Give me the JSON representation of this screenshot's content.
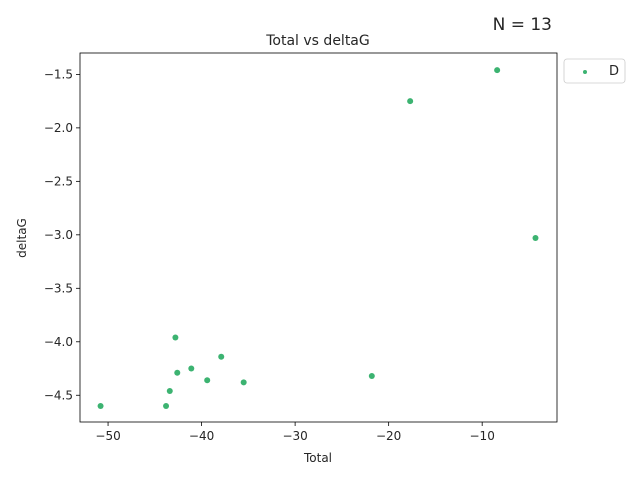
{
  "figure": {
    "annotation": "N = 13"
  },
  "chart_data": {
    "type": "scatter",
    "title": "Total vs deltaG",
    "xlabel": "Total",
    "ylabel": "deltaG",
    "xlim": [
      -53,
      -2
    ],
    "ylim": [
      -4.75,
      -1.3
    ],
    "xticks": [
      -50,
      -40,
      -30,
      -20,
      -10
    ],
    "xtick_labels": [
      "−50",
      "−40",
      "−30",
      "−20",
      "−10"
    ],
    "yticks": [
      -4.5,
      -4.0,
      -3.5,
      -3.0,
      -2.5,
      -2.0,
      -1.5
    ],
    "ytick_labels": [
      "−4.5",
      "−4.0",
      "−3.5",
      "−3.0",
      "−2.5",
      "−2.0",
      "−1.5"
    ],
    "grid": false,
    "legend_placement": "outside-top-right",
    "series": [
      {
        "name": "D",
        "color": "#3cb371",
        "points": [
          {
            "x": -8.4,
            "y": -1.46
          },
          {
            "x": -17.7,
            "y": -1.75
          },
          {
            "x": -4.3,
            "y": -3.03
          },
          {
            "x": -42.8,
            "y": -3.96
          },
          {
            "x": -37.9,
            "y": -4.14
          },
          {
            "x": -41.1,
            "y": -4.25
          },
          {
            "x": -42.6,
            "y": -4.29
          },
          {
            "x": -21.8,
            "y": -4.32
          },
          {
            "x": -39.4,
            "y": -4.36
          },
          {
            "x": -35.5,
            "y": -4.38
          },
          {
            "x": -43.4,
            "y": -4.46
          },
          {
            "x": -50.8,
            "y": -4.6
          },
          {
            "x": -43.8,
            "y": -4.6
          }
        ]
      }
    ]
  }
}
